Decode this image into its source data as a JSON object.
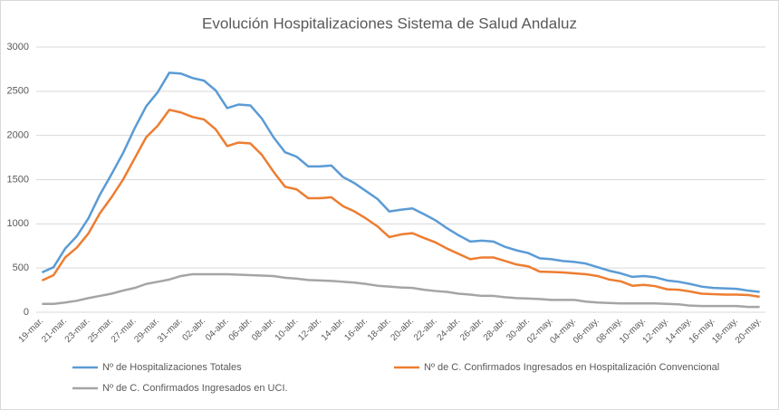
{
  "chart_data": {
    "type": "line",
    "title": "Evolución Hospitalizaciones Sistema de Salud Andaluz",
    "categories": [
      "19-mar.",
      null,
      "21-mar.",
      null,
      "23-mar.",
      null,
      "25-mar.",
      null,
      "27-mar.",
      null,
      "29-mar.",
      null,
      "31-mar.",
      null,
      "02-abr.",
      null,
      "04-abr.",
      null,
      "06-abr.",
      null,
      "08-abr.",
      null,
      "10-abr.",
      null,
      "12-abr.",
      null,
      "14-abr.",
      null,
      "16-abr.",
      null,
      "18-abr.",
      null,
      "20-abr.",
      null,
      "22-abr.",
      null,
      "24-abr.",
      null,
      "26-abr.",
      null,
      "28-abr.",
      null,
      "30-abr.",
      null,
      "02-may.",
      null,
      "04-may.",
      null,
      "06-may.",
      null,
      "08-may.",
      null,
      "10-may.",
      null,
      "12-may.",
      null,
      "14-may.",
      null,
      "16-may.",
      null,
      "18-may.",
      null,
      "20-may."
    ],
    "series": [
      {
        "name": "Nº de Hospitalizaciones Totales",
        "color": "#5b9bd5",
        "values": [
          450,
          510,
          720,
          860,
          1060,
          1330,
          1560,
          1800,
          2080,
          2330,
          2490,
          2710,
          2700,
          2650,
          2620,
          2510,
          2310,
          2350,
          2340,
          2190,
          1980,
          1810,
          1760,
          1650,
          1650,
          1660,
          1530,
          1460,
          1370,
          1280,
          1140,
          1160,
          1175,
          1110,
          1040,
          950,
          870,
          800,
          810,
          800,
          740,
          700,
          670,
          610,
          600,
          580,
          570,
          550,
          510,
          470,
          440,
          400,
          410,
          395,
          360,
          345,
          320,
          290,
          275,
          270,
          265,
          245,
          230
        ]
      },
      {
        "name": "Nº de C. Confirmados Ingresados en Hospitalización Convencional",
        "color": "#ed7d31",
        "values": [
          360,
          420,
          620,
          730,
          890,
          1120,
          1300,
          1500,
          1740,
          1980,
          2110,
          2290,
          2260,
          2210,
          2180,
          2070,
          1880,
          1920,
          1910,
          1780,
          1590,
          1420,
          1390,
          1290,
          1290,
          1300,
          1200,
          1140,
          1060,
          970,
          850,
          880,
          895,
          840,
          790,
          720,
          660,
          600,
          620,
          620,
          580,
          540,
          520,
          460,
          455,
          450,
          440,
          430,
          410,
          370,
          350,
          300,
          310,
          295,
          260,
          255,
          235,
          210,
          205,
          200,
          200,
          195,
          175
        ]
      },
      {
        "name": "Nº de C. Confirmados Ingresados en UCI.",
        "color": "#a5a5a5",
        "values": [
          95,
          95,
          110,
          130,
          160,
          185,
          210,
          245,
          275,
          320,
          345,
          370,
          410,
          430,
          430,
          430,
          430,
          425,
          420,
          415,
          410,
          390,
          380,
          365,
          360,
          355,
          345,
          335,
          320,
          300,
          290,
          280,
          275,
          255,
          240,
          230,
          210,
          200,
          185,
          185,
          170,
          160,
          155,
          150,
          140,
          140,
          140,
          120,
          110,
          105,
          100,
          100,
          100,
          100,
          95,
          90,
          75,
          70,
          70,
          70,
          70,
          60,
          60
        ]
      }
    ],
    "ylim": [
      0,
      3000
    ],
    "yticks": [
      0,
      500,
      1000,
      1500,
      2000,
      2500,
      3000
    ],
    "grid": true,
    "legend": "bottom"
  }
}
